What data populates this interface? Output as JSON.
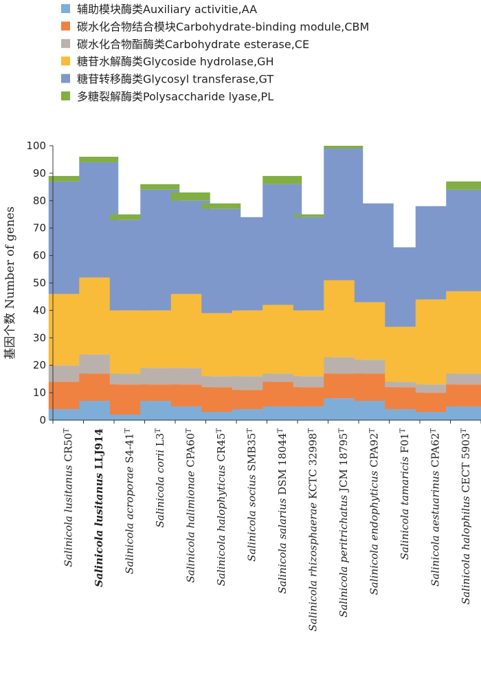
{
  "chart_data": {
    "type": "bar",
    "stacked": true,
    "title": "",
    "xlabel": "",
    "ylabel": "基因个数 Number of genes",
    "ylim": [
      0,
      100
    ],
    "yticks": [
      0,
      10,
      20,
      30,
      40,
      50,
      60,
      70,
      80,
      90,
      100
    ],
    "categories": [
      {
        "genus": "Salinicola",
        "species": "lusitanus",
        "strain": "CR50",
        "sup": "T",
        "bold": false
      },
      {
        "genus": "Salinicola",
        "species": "lusitanus",
        "strain": "LLJ914",
        "sup": "",
        "bold": true
      },
      {
        "genus": "Salinicola",
        "species": "acroporae",
        "strain": "S4-41",
        "sup": "T",
        "bold": false
      },
      {
        "genus": "Salinicola",
        "species": "corii",
        "strain": "L3",
        "sup": "T",
        "bold": false
      },
      {
        "genus": "Salinicola",
        "species": "halimionae",
        "strain": "CPA60",
        "sup": "T",
        "bold": false
      },
      {
        "genus": "Salinicola",
        "species": "halophyticus",
        "strain": "CR45",
        "sup": "T",
        "bold": false
      },
      {
        "genus": "Salinicola",
        "species": "socius",
        "strain": "SMB35",
        "sup": "T",
        "bold": false
      },
      {
        "genus": "Salinicola",
        "species": "salarius",
        "strain": "DSM 18044",
        "sup": "T",
        "bold": false
      },
      {
        "genus": "Salinicola",
        "species": "rhizosphaerae",
        "strain": "KCTC 32998",
        "sup": "T",
        "bold": false
      },
      {
        "genus": "Salinicola",
        "species": "peritrichatus",
        "strain": "JCM 18795",
        "sup": "T",
        "bold": false
      },
      {
        "genus": "Salinicola",
        "species": "endophyticus",
        "strain": "CPA92",
        "sup": "T",
        "bold": false
      },
      {
        "genus": "Salinicola",
        "species": "tamaricis",
        "strain": "F01",
        "sup": "T",
        "bold": false
      },
      {
        "genus": "Salinicola",
        "species": "aestuarinus",
        "strain": "CPA62",
        "sup": "T",
        "bold": false
      },
      {
        "genus": "Salinicola",
        "species": "halophilus",
        "strain": "CECT 5903",
        "sup": "T",
        "bold": false
      }
    ],
    "series": [
      {
        "name": "辅助模块酶类Auxiliary activitie,AA",
        "color": "#7EAED8",
        "values": [
          4,
          7,
          2,
          7,
          5,
          3,
          4,
          5,
          5,
          8,
          7,
          4,
          3,
          5
        ]
      },
      {
        "name": "碳水化合物结合模块Carbohydrate-binding module,CBM",
        "color": "#EF8240",
        "values": [
          10,
          10,
          11,
          6,
          8,
          9,
          7,
          9,
          7,
          9,
          10,
          8,
          7,
          8
        ]
      },
      {
        "name": "碳水化合物酯酶类Carbohydrate esterase,CE",
        "color": "#BBB1AC",
        "values": [
          6,
          7,
          4,
          6,
          6,
          4,
          5,
          3,
          4,
          6,
          5,
          2,
          3,
          4
        ]
      },
      {
        "name": "糖苷水解酶类Glycoside hydrolase,GH",
        "color": "#F8BC3A",
        "values": [
          26,
          28,
          23,
          21,
          27,
          23,
          24,
          25,
          24,
          28,
          21,
          20,
          31,
          30
        ]
      },
      {
        "name": "糖苷转移酶类Glycosyl transferase,GT",
        "color": "#7F98CB",
        "values": [
          41,
          42,
          33,
          44,
          34,
          38,
          34,
          44,
          34,
          48,
          36,
          29,
          34,
          37
        ]
      },
      {
        "name": "多糖裂解酶类Polysaccharide lyase,PL",
        "color": "#82AE43",
        "values": [
          2,
          2,
          2,
          2,
          3,
          2,
          0,
          3,
          1,
          1,
          0,
          0,
          0,
          3
        ]
      }
    ],
    "legend_position": "top-left",
    "grid": false
  }
}
